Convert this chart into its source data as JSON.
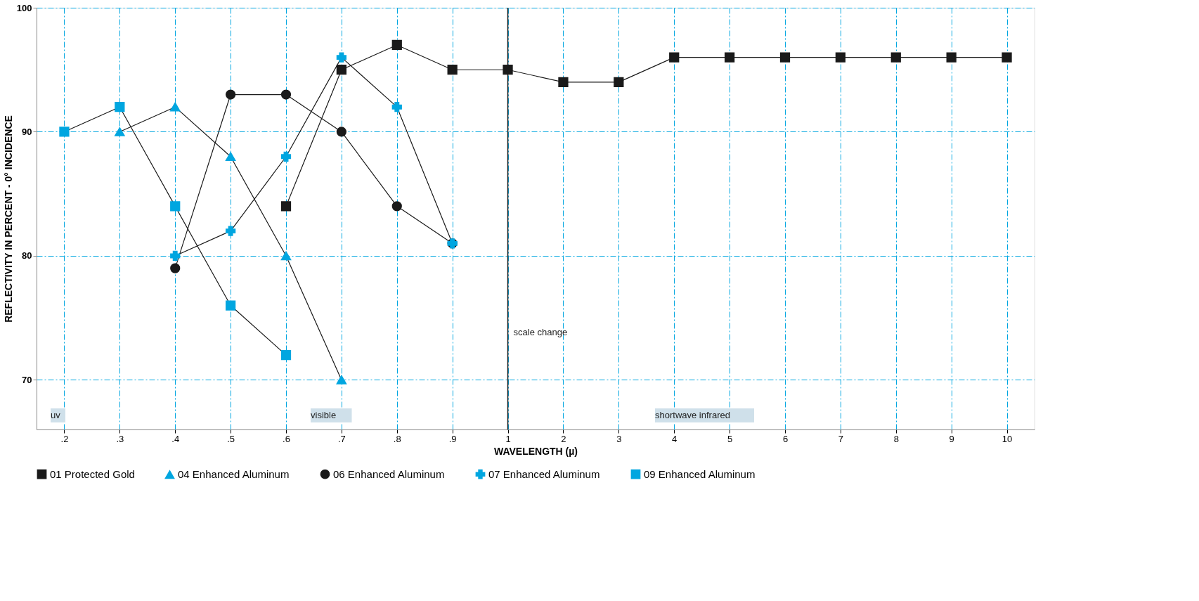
{
  "chart_data": {
    "type": "line",
    "xlabel": "WAVELENGTH (µ)",
    "ylabel": "REFLECTIVITY IN PERCENT - 0° INCIDENCE",
    "categories": [
      ".2",
      ".3",
      ".4",
      ".5",
      ".6",
      ".7",
      ".8",
      ".9",
      "1",
      "2",
      "3",
      "4",
      "5",
      "6",
      "7",
      "8",
      "9",
      "10"
    ],
    "series": [
      {
        "name": "01 Protected Gold",
        "color": "#1a1a1a",
        "marker": "square",
        "values": [
          null,
          null,
          null,
          null,
          84,
          95,
          97,
          95,
          95,
          94,
          94,
          96,
          96,
          96,
          96,
          96,
          96,
          96
        ]
      },
      {
        "name": "04 Enhanced Aluminum",
        "color": "#00a6e0",
        "marker": "triangle",
        "values": [
          null,
          90,
          92,
          88,
          80,
          70,
          null,
          null,
          null,
          null,
          null,
          null,
          null,
          null,
          null,
          null,
          null,
          null
        ]
      },
      {
        "name": "06 Enhanced Aluminum",
        "color": "#1a1a1a",
        "marker": "circle",
        "values": [
          null,
          null,
          79,
          93,
          93,
          90,
          84,
          81,
          null,
          null,
          null,
          null,
          null,
          null,
          null,
          null,
          null,
          null
        ]
      },
      {
        "name": "07 Enhanced Aluminum",
        "color": "#00a6e0",
        "marker": "cross",
        "values": [
          null,
          null,
          80,
          82,
          88,
          96,
          92,
          81,
          null,
          null,
          null,
          null,
          null,
          null,
          null,
          null,
          null,
          null
        ]
      },
      {
        "name": "09 Enhanced Aluminum",
        "color": "#00a6e0",
        "marker": "square",
        "values": [
          90,
          92,
          84,
          76,
          72,
          null,
          null,
          null,
          null,
          null,
          null,
          null,
          null,
          null,
          null,
          null,
          null,
          null
        ]
      }
    ],
    "ylim": [
      66,
      100
    ],
    "yticks": [
      70,
      80,
      90,
      100
    ],
    "grid": true,
    "legend": "bottom",
    "line_style": "solid",
    "ref_lines": [
      {
        "axis": "x",
        "value": "1",
        "label": null,
        "color": "#1a1a1a"
      }
    ],
    "annotations": [
      "uv",
      "visible",
      "shortwave infrared",
      {
        "text": "scale change",
        "x": "1",
        "y": 73.8
      }
    ]
  }
}
